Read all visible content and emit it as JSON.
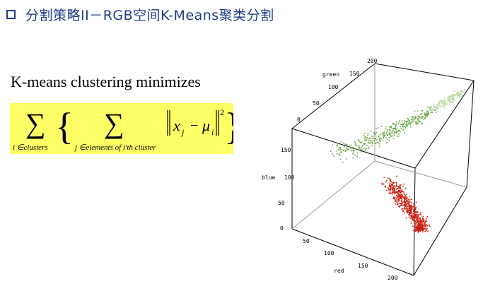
{
  "header": {
    "title": "分割策略II－RGB空间K-Means聚类分割",
    "bullet_icon": "hollow-square-icon",
    "color": "#1f3c88"
  },
  "formula": {
    "heading": "K-means clustering minimizes",
    "outer_sum_label": "i ∈clusters",
    "inner_sum_label": "j ∈elements of i'th cluster",
    "term_x": "x",
    "term_x_sub": "j",
    "term_minus": "−",
    "term_mu": "μ",
    "term_mu_sub": "i",
    "exponent": "2",
    "background": "#ffff66"
  },
  "plot3d": {
    "type": "scatter3d",
    "axis_labels": {
      "green": "green",
      "blue": "blue",
      "red": "red"
    },
    "green_ticks": [
      "0",
      "50",
      "100",
      "150",
      "200"
    ],
    "blue_ticks": [
      "0",
      "50",
      "100",
      "150"
    ],
    "red_ticks": [
      "50",
      "100",
      "150",
      "200"
    ],
    "clusters": [
      {
        "color": "#6aaa44"
      },
      {
        "color": "#cc2211"
      }
    ]
  }
}
